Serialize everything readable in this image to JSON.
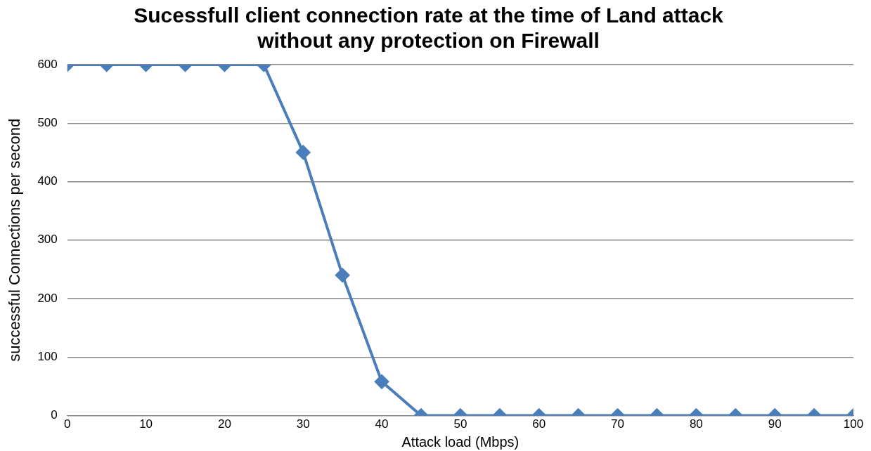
{
  "chart_data": {
    "type": "line",
    "title": [
      "Sucessfull client connection rate at the time of Land attack",
      "without any protection on Firewall"
    ],
    "xlabel": "Attack load (Mbps)",
    "ylabel": "successful Connections per second",
    "x": [
      0,
      5,
      10,
      15,
      20,
      25,
      30,
      35,
      40,
      45,
      50,
      55,
      60,
      65,
      70,
      75,
      80,
      85,
      90,
      95,
      100
    ],
    "series": [
      {
        "color": "#4a7ebb",
        "values": [
          600,
          600,
          600,
          600,
          600,
          600,
          450,
          240,
          58,
          0,
          0,
          0,
          0,
          0,
          0,
          0,
          0,
          0,
          0,
          0,
          0
        ]
      }
    ],
    "xlim": [
      0,
      100
    ],
    "xticks": [
      0,
      10,
      20,
      30,
      40,
      50,
      60,
      70,
      80,
      90,
      100
    ],
    "ylim": [
      0,
      600
    ],
    "yticks": [
      0,
      100,
      200,
      300,
      400,
      500,
      600
    ],
    "grid": "y",
    "legend": false,
    "marker": "diamond",
    "line_style": "solid"
  }
}
